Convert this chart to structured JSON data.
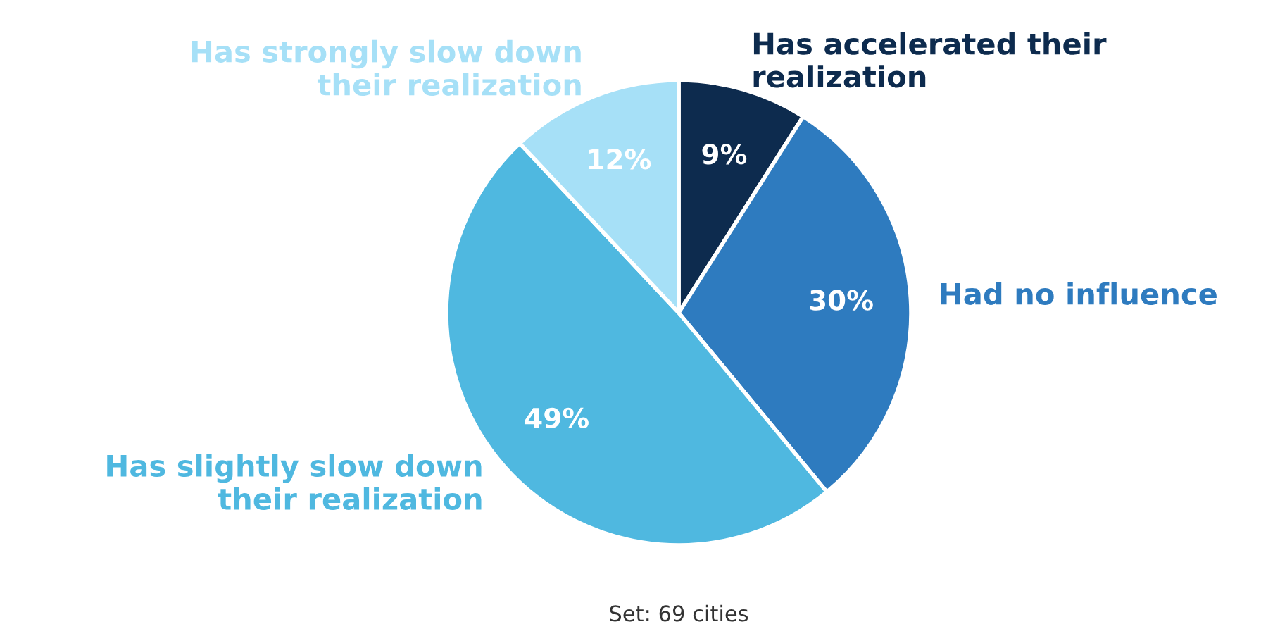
{
  "chart_data": {
    "type": "pie",
    "categories": [
      "Has accelerated their\nrealization",
      "Had no influence",
      "Has slightly slow down\ntheir realization",
      "Has strongly slow down\ntheir realization"
    ],
    "values": [
      9,
      30,
      49,
      12
    ],
    "value_labels": [
      "9%",
      "30%",
      "49%",
      "12%"
    ],
    "colors": [
      "#0d2b4e",
      "#2e7bbf",
      "#4fb8e0",
      "#a6e0f7"
    ],
    "annotations": [
      "Set: 69 cities"
    ]
  }
}
